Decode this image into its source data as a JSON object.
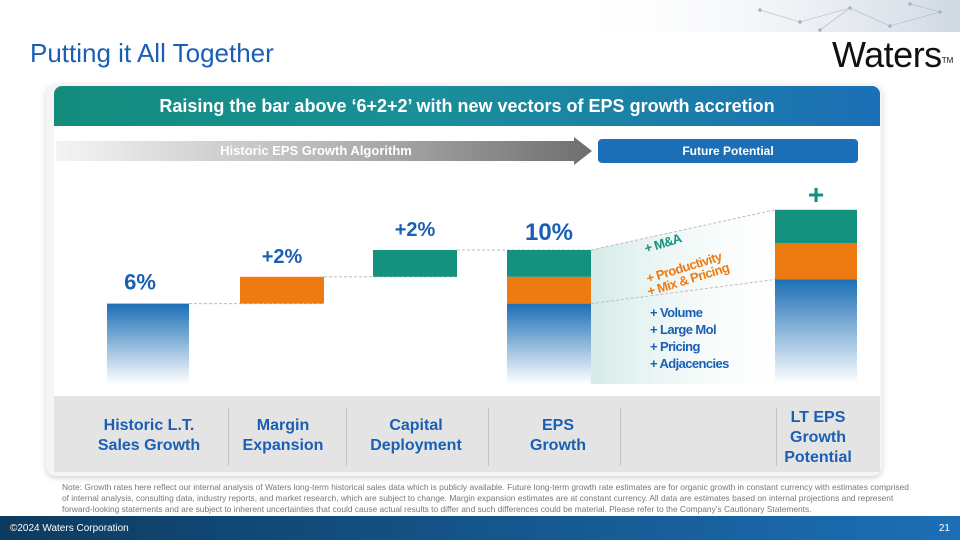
{
  "slide": {
    "title": "Putting it All Together",
    "logo": "Waters",
    "logo_mark": "TM",
    "header": "Raising the bar above ‘6+2+2’ with new vectors of EPS growth accretion",
    "historic_arrow": "Historic EPS Growth Algorithm",
    "future_label": "Future Potential",
    "columns": [
      "Historic L.T.\nSales Growth",
      "Margin\nExpansion",
      "Capital\nDeployment",
      "EPS\nGrowth",
      "LT EPS\nGrowth\nPotential"
    ],
    "note": "Note: Growth rates here reflect our internal analysis of Waters long-term historical sales data which is publicly available. Future long-term growth rate estimates are for organic growth in constant currency with estimates comprised of internal analysis, consulting data, industry reports, and market research, which are subject to change. Margin expansion estimates are at constant currency. All data are estimates based on internal projections and represent forward-looking statements and are subject to inherent uncertainties that could cause actual results to differ and such differences could be material. Please refer to the Company’s Cautionary Statements.",
    "copyright": "©2024 Waters Corporation",
    "page_number": "21"
  },
  "colors": {
    "blue": "#1c6fb6",
    "orange": "#ee7a12",
    "teal": "#14917f",
    "title_blue": "#1a5fb4"
  },
  "chart_data": {
    "type": "bar",
    "subtype": "waterfall",
    "ylim": [
      0,
      14
    ],
    "categories": [
      "Historic L.T. Sales Growth",
      "Margin Expansion",
      "Capital Deployment",
      "EPS Growth",
      "LT EPS Growth Potential"
    ],
    "bars": [
      {
        "category": "Historic L.T. Sales Growth",
        "segments": [
          {
            "component": "sales",
            "from": 0,
            "to": 6
          }
        ],
        "data_label": "6%"
      },
      {
        "category": "Margin Expansion",
        "segments": [
          {
            "component": "margin",
            "from": 6,
            "to": 8
          }
        ],
        "data_label": "+2%"
      },
      {
        "category": "Capital Deployment",
        "segments": [
          {
            "component": "capital",
            "from": 8,
            "to": 10
          }
        ],
        "data_label": "+2%"
      },
      {
        "category": "EPS Growth",
        "segments": [
          {
            "component": "sales",
            "from": 0,
            "to": 6
          },
          {
            "component": "margin",
            "from": 6,
            "to": 8
          },
          {
            "component": "capital",
            "from": 8,
            "to": 10
          }
        ],
        "data_label": "10%"
      },
      {
        "category": "LT EPS Growth Potential",
        "segments": [
          {
            "component": "sales",
            "from": 0,
            "to": 7.8
          },
          {
            "component": "margin",
            "from": 7.8,
            "to": 10.5
          },
          {
            "component": "capital",
            "from": 10.5,
            "to": 13
          }
        ],
        "data_label": "+"
      }
    ],
    "annotations": [
      {
        "text": "+ M&A",
        "segment": "capital"
      },
      {
        "text": "+ Productivity",
        "segment": "margin"
      },
      {
        "text": "+ Mix & Pricing",
        "segment": "margin"
      },
      {
        "text": "+ Volume",
        "segment": "sales"
      },
      {
        "text": "+ Large Mol",
        "segment": "sales"
      },
      {
        "text": "+ Pricing",
        "segment": "sales"
      },
      {
        "text": "+ Adjacencies",
        "segment": "sales"
      }
    ]
  }
}
